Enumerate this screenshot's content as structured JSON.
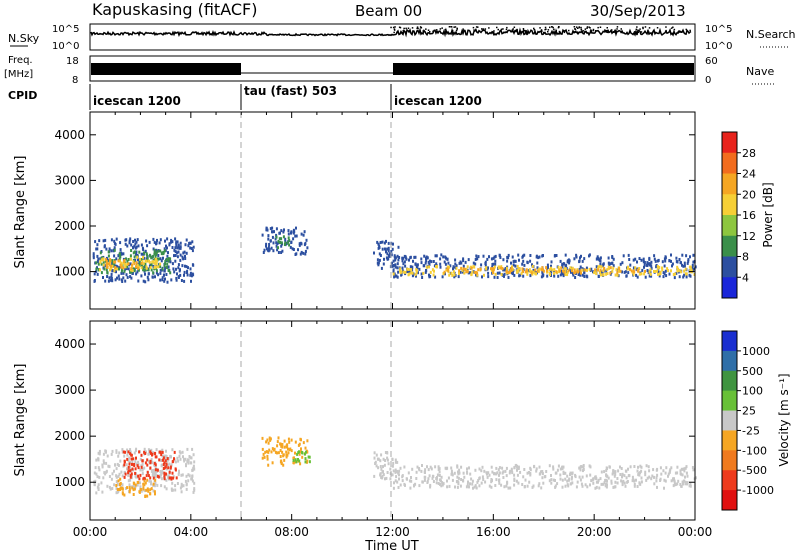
{
  "header": {
    "station": "Kapuskasing (fitACF)",
    "beam": "Beam 00",
    "date": "30/Sep/2013"
  },
  "noise_panel": {
    "left_label": "N.Sky",
    "right_label": "N.Search",
    "left_ticks": [
      "10^5",
      "10^0"
    ],
    "right_ticks": [
      "10^5",
      "10^0"
    ]
  },
  "freq_panel": {
    "left_label": "Freq.",
    "left_unit": "[MHz]",
    "left_ticks": [
      "18",
      "8"
    ],
    "right_label": "Nave",
    "right_ticks": [
      "60",
      "0"
    ]
  },
  "cpid": {
    "label": "CPID",
    "segments": [
      {
        "label": "icescan 1200",
        "start_hour": 0,
        "end_hour": 6
      },
      {
        "label": "tau (fast) 503",
        "start_hour": 6,
        "end_hour": 12
      },
      {
        "label": "icescan 1200",
        "start_hour": 12,
        "end_hour": 24
      }
    ]
  },
  "power_colorbar": {
    "label": "Power [dB]",
    "ticks": [
      "28",
      "24",
      "20",
      "16",
      "12",
      "8",
      "4"
    ],
    "colors": [
      "#e8231c",
      "#f26c1e",
      "#f5a623",
      "#f6cf36",
      "#8dc63f",
      "#3a8f4a",
      "#2c4fa0",
      "#1a26d9"
    ]
  },
  "velocity_colorbar": {
    "label": "Velocity [m s⁻¹]",
    "ticks": [
      "1000",
      "500",
      "100",
      "25",
      "-25",
      "-100",
      "-500",
      "-1000"
    ],
    "colors": [
      "#1a2fd0",
      "#2f6fa8",
      "#3f9440",
      "#68c037",
      "#c8c8c8",
      "#f5a623",
      "#f07a1e",
      "#ee3a1c",
      "#e01010"
    ]
  },
  "chart_data": [
    {
      "type": "heatmap",
      "name": "power",
      "ylabel": "Slant Range [km]",
      "yticks": [
        1000,
        2000,
        3000,
        4000
      ],
      "ylim": [
        180,
        4500
      ],
      "xlim": [
        0,
        24
      ],
      "clusters": [
        {
          "x0": 0.1,
          "x1": 4.1,
          "y0": 800,
          "y1": 1750,
          "color": "#2c4fa0"
        },
        {
          "x0": 0.2,
          "x1": 3.2,
          "y0": 1000,
          "y1": 1500,
          "color": "#3a8f4a"
        },
        {
          "x0": 0.3,
          "x1": 2.8,
          "y0": 1050,
          "y1": 1350,
          "color": "#f6cf36"
        },
        {
          "x0": 0.5,
          "x1": 2.2,
          "y0": 1100,
          "y1": 1300,
          "color": "#f5a623"
        },
        {
          "x0": 6.8,
          "x1": 8.6,
          "y0": 1400,
          "y1": 2000,
          "color": "#2c4fa0"
        },
        {
          "x0": 7.3,
          "x1": 8.0,
          "y0": 1550,
          "y1": 1800,
          "color": "#3a8f4a"
        },
        {
          "x0": 11.2,
          "x1": 12.2,
          "y0": 1100,
          "y1": 1700,
          "color": "#2c4fa0"
        },
        {
          "x0": 12.0,
          "x1": 24.0,
          "y0": 900,
          "y1": 1400,
          "color": "#2c4fa0"
        },
        {
          "x0": 12.0,
          "x1": 24.0,
          "y0": 950,
          "y1": 1150,
          "color": "#f6cf36"
        },
        {
          "x0": 14.0,
          "x1": 22.0,
          "y0": 1000,
          "y1": 1120,
          "color": "#f5a623"
        }
      ]
    },
    {
      "type": "heatmap",
      "name": "velocity",
      "ylabel": "Slant Range [km]",
      "yticks": [
        1000,
        2000,
        3000,
        4000
      ],
      "ylim": [
        180,
        4500
      ],
      "xlim": [
        0,
        24
      ],
      "xlabel": "Time UT",
      "xticks": [
        "00:00",
        "04:00",
        "08:00",
        "12:00",
        "16:00",
        "20:00",
        "00:00"
      ],
      "clusters": [
        {
          "x0": 0.1,
          "x1": 4.1,
          "y0": 800,
          "y1": 1750,
          "color": "#c8c8c8"
        },
        {
          "x0": 1.3,
          "x1": 3.4,
          "y0": 1100,
          "y1": 1700,
          "color": "#ee3a1c"
        },
        {
          "x0": 1.0,
          "x1": 2.6,
          "y0": 700,
          "y1": 1100,
          "color": "#f5a623"
        },
        {
          "x0": 6.8,
          "x1": 8.6,
          "y0": 1400,
          "y1": 2000,
          "color": "#f5a623"
        },
        {
          "x0": 8.0,
          "x1": 8.8,
          "y0": 1450,
          "y1": 1700,
          "color": "#68c037"
        },
        {
          "x0": 11.2,
          "x1": 12.2,
          "y0": 1100,
          "y1": 1700,
          "color": "#c8c8c8"
        },
        {
          "x0": 12.0,
          "x1": 24.0,
          "y0": 900,
          "y1": 1400,
          "color": "#c8c8c8"
        }
      ]
    }
  ]
}
